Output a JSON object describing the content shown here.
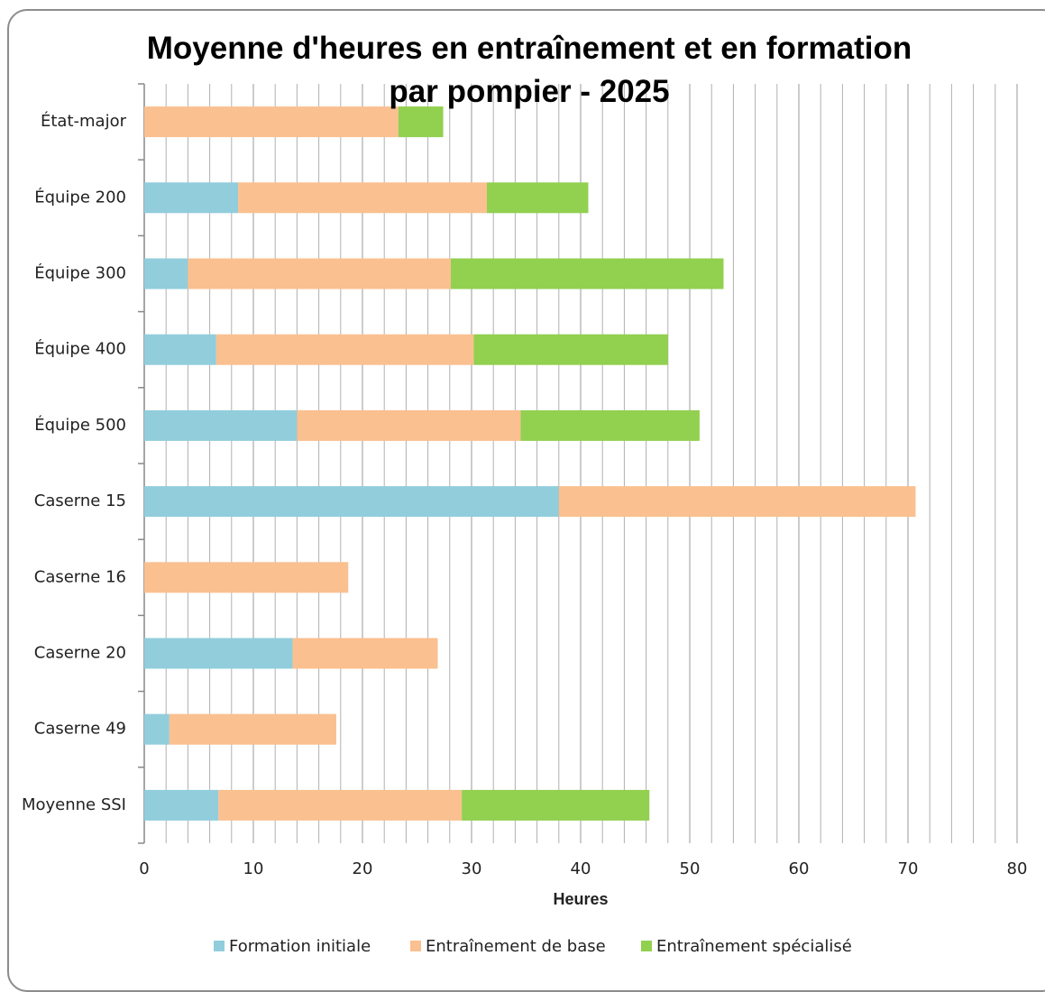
{
  "chart_data": {
    "type": "stacked_barh",
    "title": "Moyenne d'heures en entraînement et en formation par pompier - 2025",
    "categories": [
      "État-major",
      "Équipe 200",
      "Équipe 300",
      "Équipe 400",
      "Équipe 500",
      "Caserne 15",
      "Caserne 16",
      "Caserne 20",
      "Caserne 49",
      "Moyenne SSI"
    ],
    "series": [
      {
        "name": "Formation initiale",
        "color": "#92cddc",
        "values": [
          0,
          8.6,
          4.0,
          6.6,
          14.0,
          38.0,
          0,
          13.6,
          2.3,
          6.8
        ]
      },
      {
        "name": "Entraînement de base",
        "color": "#fac090",
        "values": [
          23.3,
          22.8,
          24.1,
          23.6,
          20.5,
          32.7,
          18.7,
          13.3,
          15.3,
          22.3
        ]
      },
      {
        "name": "Entraînement spécialisé",
        "color": "#92d050",
        "values": [
          4.1,
          9.3,
          25.0,
          17.8,
          16.4,
          0,
          0,
          0,
          0,
          17.2
        ]
      }
    ],
    "xlabel": "Heures",
    "xlim": [
      0,
      80
    ],
    "xticks": [
      0,
      10,
      20,
      30,
      40,
      50,
      60,
      70,
      80
    ],
    "x_minor_ticks": [
      2,
      4,
      6,
      8,
      12,
      14,
      16,
      18,
      22,
      24,
      26,
      28,
      32,
      34,
      36,
      38,
      42,
      44,
      46,
      48,
      52,
      54,
      56,
      58,
      62,
      64,
      66,
      68,
      72,
      74,
      76,
      78
    ],
    "grid": true,
    "legend": "bottom"
  }
}
